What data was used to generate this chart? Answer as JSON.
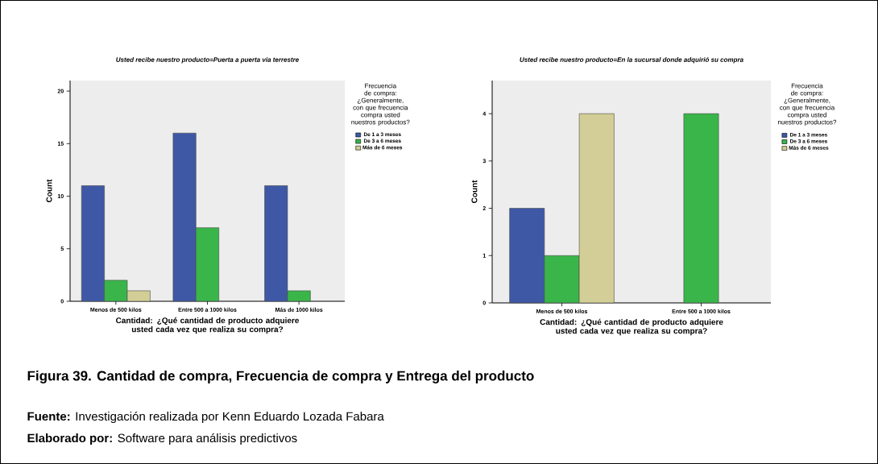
{
  "chart_data": [
    {
      "type": "bar",
      "title": "Usted recibe nuestro producto=Puerta a puerta vía terrestre",
      "xlabel": "Cantidad: ¿Qué cantidad de producto adquiere usted cada vez que realiza su compra?",
      "ylabel": "Count",
      "legend_title": "Frecuencia de compra: ¿Generalmente, con que frecuencia compra usted nuestros productos?",
      "legend": "right",
      "categories": [
        "Menos de 500 kilos",
        "Entre 500 a 1000 kilos",
        "Más de 1000 kilos"
      ],
      "series": [
        {
          "name": "De 1 a 3 meses",
          "color": "#3e58a6",
          "values": [
            11,
            16,
            11
          ]
        },
        {
          "name": "De 3 a 6 meses",
          "color": "#39b54a",
          "values": [
            2,
            7,
            1
          ]
        },
        {
          "name": "Más de 6 meses",
          "color": "#d3ce97",
          "values": [
            1,
            null,
            null
          ]
        }
      ],
      "ylim": [
        0,
        21
      ],
      "yticks": [
        0,
        5,
        10,
        15,
        20
      ],
      "annotations": [
        "**Figura 39.  Cantidad de compra, Frecuencia de compra y Entrega del producto**",
        "**Fuente:** Investigación realizada por Kenn Eduardo Lozada Fabara",
        "**Elaborado por:** Software para análisis predictivos"
      ]
    },
    {
      "type": "bar",
      "title": "Usted recibe nuestro producto=En la sucursal donde adquirió su compra",
      "xlabel": "Cantidad: ¿Qué cantidad de producto adquiere usted cada vez que realiza su compra?",
      "ylabel": "Count",
      "legend_title": "Frecuencia de compra: ¿Generalmente, con que frecuencia compra usted nuestros productos?",
      "legend": "right",
      "categories": [
        "Menos de 500 kilos",
        "Entre 500 a 1000 kilos"
      ],
      "series": [
        {
          "name": "De 1 a 3 meses",
          "color": "#3e58a6",
          "values": [
            2,
            null
          ]
        },
        {
          "name": "De 3 a 6 meses",
          "color": "#39b54a",
          "values": [
            1,
            4
          ]
        },
        {
          "name": "Más de 6 meses",
          "color": "#d3ce97",
          "values": [
            4,
            null
          ]
        }
      ],
      "ylim": [
        0,
        4.7
      ],
      "yticks": [
        0,
        1,
        2,
        3,
        4
      ]
    }
  ]
}
